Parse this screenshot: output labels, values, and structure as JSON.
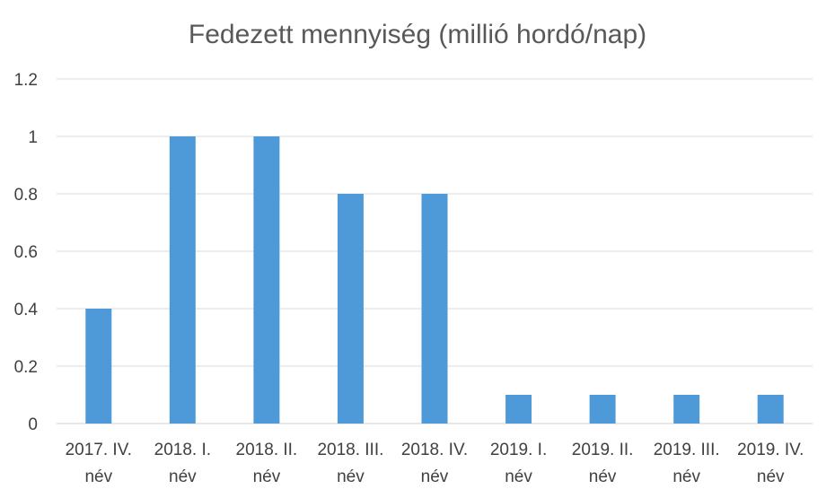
{
  "chart_data": {
    "type": "bar",
    "title": "Fedezett mennyiség (millió hordó/nap)",
    "xlabel": "",
    "ylabel": "",
    "categories": [
      [
        "2017. IV.",
        "név"
      ],
      [
        "2018. I.",
        "név"
      ],
      [
        "2018. II.",
        "név"
      ],
      [
        "2018. III.",
        "név"
      ],
      [
        "2018. IV.",
        "név"
      ],
      [
        "2019. I.",
        "név"
      ],
      [
        "2019. II.",
        "név"
      ],
      [
        "2019. III.",
        "név"
      ],
      [
        "2019. IV.",
        "név"
      ]
    ],
    "values": [
      0.4,
      1.0,
      1.0,
      0.8,
      0.8,
      0.1,
      0.1,
      0.1,
      0.1
    ],
    "ylim": [
      0,
      1.2
    ],
    "yticks": [
      "0",
      "0.2",
      "0.4",
      "0.6",
      "0.8",
      "1",
      "1.2"
    ],
    "grid": true,
    "legend": "none",
    "bar_color": "#4e9ad9"
  }
}
